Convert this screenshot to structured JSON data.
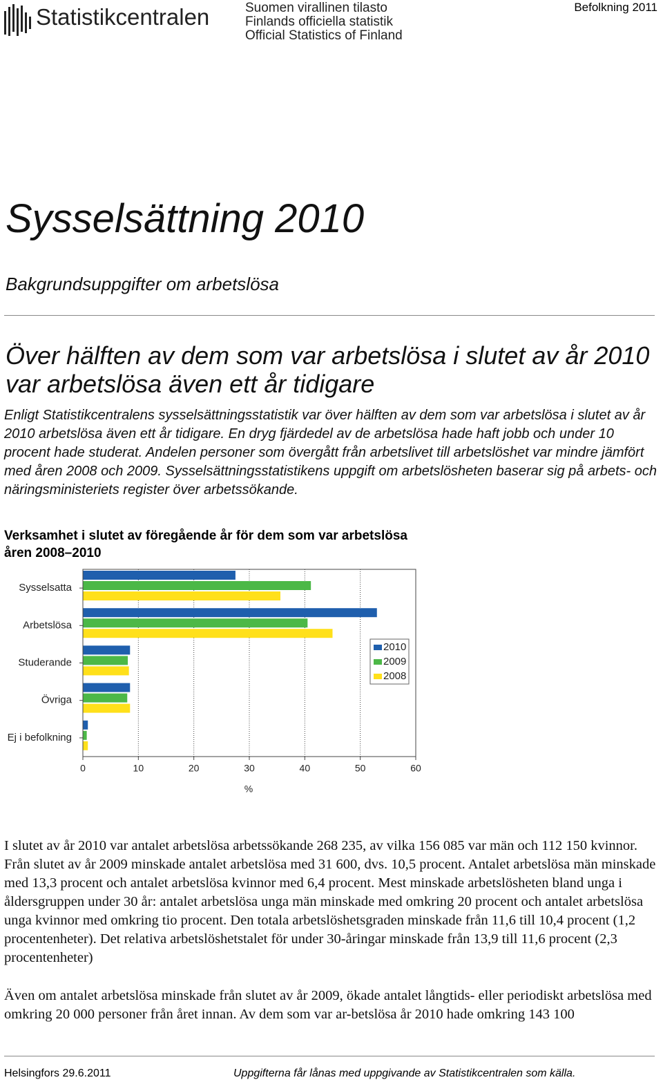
{
  "header": {
    "logo": "Statistikcentralen",
    "official": [
      "Suomen virallinen tilasto",
      "Finlands officiella statistik",
      "Official Statistics of Finland"
    ],
    "series": "Befolkning 2011"
  },
  "title": "Sysselsättning 2010",
  "subtitle": "Bakgrundsuppgifter om arbetslösa",
  "heading": [
    "Över hälften av dem som var arbetslösa i slutet av år 2010",
    "var arbetslösa även ett år tidigare"
  ],
  "lead": "Enligt Statistikcentralens sysselsättningsstatistik var över hälften av dem som var arbetslösa i slutet av år 2010 arbetslösa även ett år tidigare. En dryg fjärdedel av de arbetslösa hade haft jobb och under 10 procent hade studerat. Andelen personer som övergått från arbetslivet till arbetslöshet var mindre jämfört med åren 2008 och 2009. Sysselsättningsstatistikens uppgift om arbetslösheten baserar sig på arbets- och näringsministeriets register över arbetssökande.",
  "chart_data": {
    "type": "hbar",
    "title": [
      "Verksamhet i slutet av föregående år för dem som var arbetslösa",
      "åren 2008–2010"
    ],
    "categories": [
      "Sysselsatta",
      "Arbetslösa",
      "Studerande",
      "Övriga",
      "Ej i befolkning"
    ],
    "series": [
      {
        "name": "2010",
        "color": "#1f5fad",
        "values": [
          27.5,
          53.0,
          8.5,
          8.5,
          0.9
        ]
      },
      {
        "name": "2009",
        "color": "#4cb847",
        "values": [
          41.1,
          40.5,
          8.1,
          8.0,
          0.7
        ]
      },
      {
        "name": "2008",
        "color": "#ffe01a",
        "values": [
          35.6,
          45.0,
          8.3,
          8.5,
          0.9
        ]
      }
    ],
    "xlabel": "%",
    "xlim": [
      0,
      60
    ],
    "xticks": [
      0,
      10,
      20,
      30,
      40,
      50,
      60
    ],
    "grid": true,
    "legend": "right"
  },
  "body": [
    "I slutet av år 2010 var antalet arbetslösa arbetssökande 268 235, av vilka 156 085 var män och 112 150 kvinnor. Från slutet av år 2009 minskade antalet arbetslösa med 31 600, dvs. 10,5 procent. Antalet arbetslösa män minskade med 13,3 procent och antalet arbetslösa kvinnor med 6,4 procent. Mest minskade arbetslösheten bland unga i åldersgruppen under 30 år: antalet arbetslösa unga män minskade med omkring 20 procent och antalet arbetslösa unga kvinnor med omkring tio procent. Den totala arbetslöshetsgraden minskade från 11,6 till 10,4 procent (1,2 procentenheter). Det relativa arbetslöshetstalet för under 30-åringar minskade från 13,9 till 11,6 procent (2,3 procentenheter)",
    "Även om antalet arbetslösa minskade från slutet av år 2009, ökade antalet långtids- eller periodiskt arbetslösa med omkring 20 000 personer från året innan. Av dem som var ar-betslösa år 2010 hade omkring 143 100"
  ],
  "footer": {
    "left": "Helsingfors 29.6.2011",
    "right": "Uppgifterna får lånas med uppgivande av Statistikcentralen som källa."
  }
}
